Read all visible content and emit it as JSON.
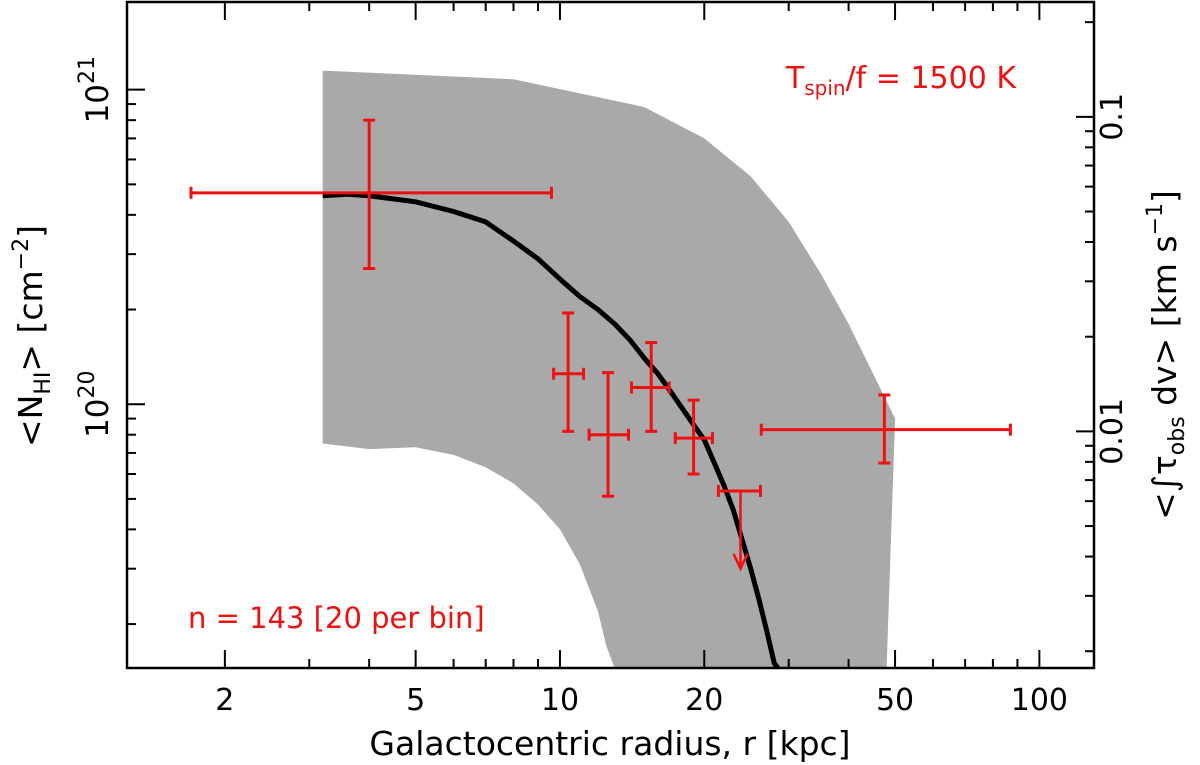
{
  "chart_data": {
    "type": "scatter",
    "title": "",
    "xlabel": "Galactocentric radius, r  [kpc]",
    "ylabel_left": {
      "open": "<N",
      "sub": "HI",
      "close": ">  [cm",
      "sup": "−2",
      "end": "]"
    },
    "ylabel_right": {
      "open": "<∫τ",
      "sub": "obs",
      "mid": " dv>  [km s",
      "sup": "−1",
      "end": "]"
    },
    "x_scale": "log",
    "y_scale": "log",
    "xlim": [
      1.25,
      130
    ],
    "ylim": [
      1.45e+19,
      1.9e+21
    ],
    "x_ticks": [
      {
        "value": 2,
        "label": "2"
      },
      {
        "value": 5,
        "label": "5"
      },
      {
        "value": 10,
        "label": "10"
      },
      {
        "value": 20,
        "label": "20"
      },
      {
        "value": 50,
        "label": "50"
      },
      {
        "value": 100,
        "label": "100"
      }
    ],
    "y_ticks_left": [
      {
        "value": 1e+20,
        "base": "10",
        "exp": "20"
      },
      {
        "value": 1e+21,
        "base": "10",
        "exp": "21"
      }
    ],
    "right_axis": {
      "conversion_per_unit": 1.22e-22,
      "ticks": [
        {
          "value": 0.01,
          "label": "0.01"
        },
        {
          "value": 0.1,
          "label": "0.1"
        }
      ]
    },
    "annotations": {
      "tspin": {
        "prefix": "T",
        "sub": "spin",
        "suffix": "/f = 1500 K"
      },
      "sample": "n = 143 [20 per bin]"
    },
    "colors": {
      "points": "#ee1111",
      "band": "#a9a9a9",
      "model": "#000000"
    },
    "band": {
      "upper": [
        [
          3.2,
          1.15e+21
        ],
        [
          8,
          1.08e+21
        ],
        [
          15,
          8.8e+20
        ],
        [
          20,
          7e+20
        ],
        [
          25,
          5.3e+20
        ],
        [
          30,
          3.8e+20
        ],
        [
          35,
          2.6e+20
        ],
        [
          40,
          1.8e+20
        ],
        [
          45,
          1.25e+20
        ],
        [
          50,
          9e+19
        ]
      ],
      "lower": [
        [
          3.2,
          7.5e+19
        ],
        [
          4,
          7.2e+19
        ],
        [
          5,
          7.3e+19
        ],
        [
          6,
          6.9e+19
        ],
        [
          7,
          6.3e+19
        ],
        [
          8,
          5.6e+19
        ],
        [
          9,
          4.8e+19
        ],
        [
          10,
          4e+19
        ],
        [
          11,
          3.1e+19
        ],
        [
          12,
          2.2e+19
        ],
        [
          12.5,
          1.7e+19
        ],
        [
          13,
          1.4e+19
        ]
      ],
      "x_floor": 48
    },
    "model_line": [
      [
        3.2,
        4.6e+20
      ],
      [
        3.6,
        4.65e+20
      ],
      [
        4,
        4.6e+20
      ],
      [
        5,
        4.4e+20
      ],
      [
        6,
        4.1e+20
      ],
      [
        7,
        3.8e+20
      ],
      [
        8,
        3.3e+20
      ],
      [
        9,
        2.9e+20
      ],
      [
        10,
        2.5e+20
      ],
      [
        11,
        2.2e+20
      ],
      [
        12,
        2e+20
      ],
      [
        13,
        1.8e+20
      ],
      [
        14,
        1.6e+20
      ],
      [
        15,
        1.4e+20
      ],
      [
        16,
        1.25e+20
      ],
      [
        17,
        1.1e+20
      ],
      [
        18,
        9.7e+19
      ],
      [
        19,
        8.6e+19
      ],
      [
        20,
        7.7e+19
      ],
      [
        21,
        6.5e+19
      ],
      [
        22,
        5.5e+19
      ],
      [
        23,
        4.6e+19
      ],
      [
        24,
        3.7e+19
      ],
      [
        25,
        3e+19
      ],
      [
        26,
        2.4e+19
      ],
      [
        27,
        1.9e+19
      ],
      [
        28,
        1.5e+19
      ],
      [
        28.5,
        1.4e+19
      ]
    ],
    "points": [
      {
        "x": 4.0,
        "x_lo": 1.7,
        "x_hi": 9.6,
        "y": 4.7e+20,
        "y_lo": 2.7e+20,
        "y_hi": 8e+20,
        "upper_limit": false
      },
      {
        "x": 10.4,
        "x_lo": 9.7,
        "x_hi": 11.2,
        "y": 1.25e+20,
        "y_lo": 8.2e+19,
        "y_hi": 1.95e+20,
        "upper_limit": false
      },
      {
        "x": 12.6,
        "x_lo": 11.5,
        "x_hi": 13.9,
        "y": 8e+19,
        "y_lo": 5.1e+19,
        "y_hi": 1.26e+20,
        "upper_limit": false
      },
      {
        "x": 15.5,
        "x_lo": 14.1,
        "x_hi": 16.9,
        "y": 1.13e+20,
        "y_lo": 8.2e+19,
        "y_hi": 1.57e+20,
        "upper_limit": false
      },
      {
        "x": 19.0,
        "x_lo": 17.4,
        "x_hi": 20.8,
        "y": 7.8e+19,
        "y_lo": 6e+19,
        "y_hi": 1.03e+20,
        "upper_limit": false
      },
      {
        "x": 23.8,
        "x_lo": 21.4,
        "x_hi": 26.2,
        "y": 5.3e+19,
        "y_lo": 3e+19,
        "y_hi": null,
        "upper_limit": true
      },
      {
        "x": 47.5,
        "x_lo": 26.3,
        "x_hi": 87.0,
        "y": 8.3e+19,
        "y_lo": 6.5e+19,
        "y_hi": 1.07e+20,
        "upper_limit": false
      }
    ]
  }
}
